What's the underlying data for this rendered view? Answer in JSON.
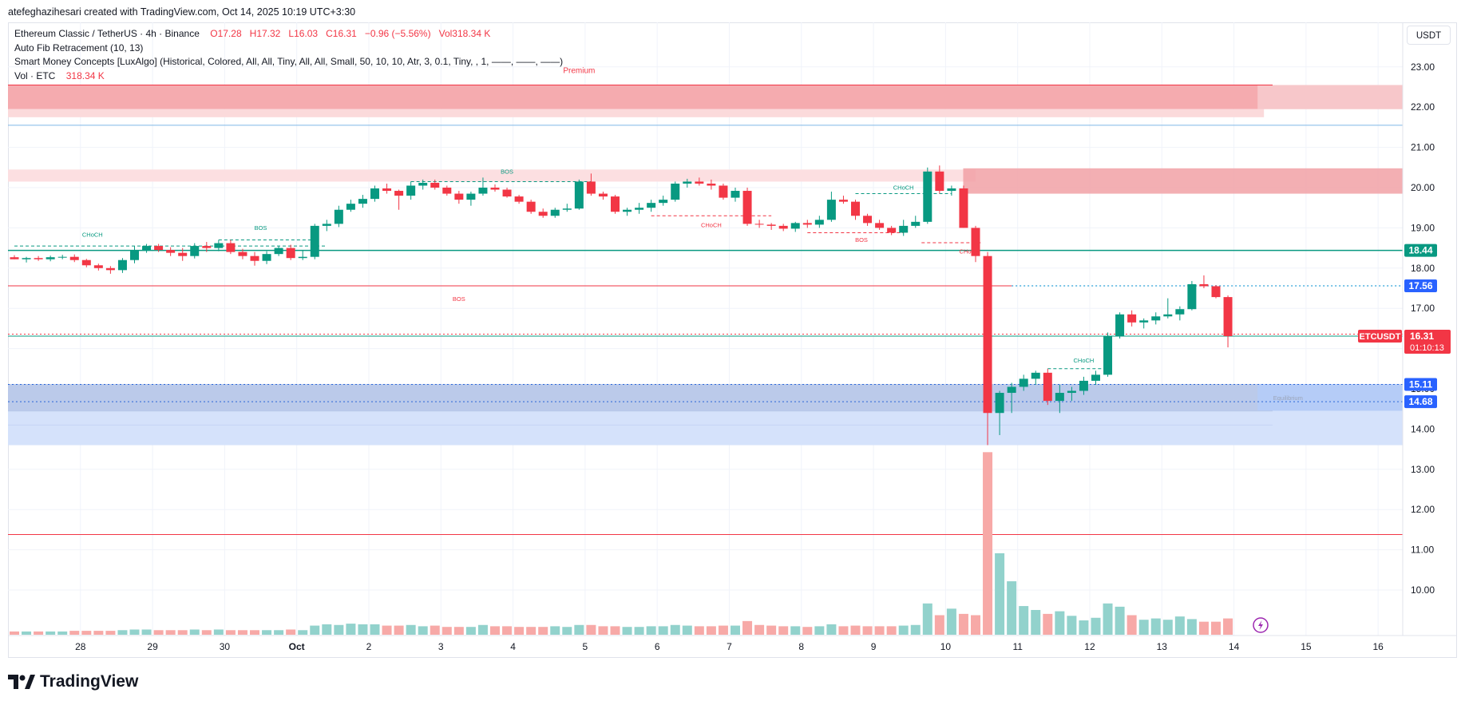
{
  "header": {
    "credit": "atefeghazihesari created with TradingView.com, Oct 14, 2025 10:19 UTC+3:30"
  },
  "legend": {
    "symbol": "Ethereum Classic / TetherUS · 4h · Binance",
    "ohlc_open": "O17.28",
    "ohlc_high": "H17.32",
    "ohlc_low": "L16.03",
    "ohlc_close": "C16.31",
    "change": "−0.96 (−5.56%)",
    "vol": "Vol318.34 K",
    "indicator1": "Auto Fib Retracement (10, 13)",
    "indicator2": "Smart Money Concepts [LuxAlgo] (Historical, Colored, All, All, Tiny, All, All, Small, 50, 10, 10, Atr, 3, 0.1, Tiny, , 1, ——, ——, ——)",
    "vol_label": "Vol · ETC",
    "vol_value": "318.34 K"
  },
  "currency": "USDT",
  "brand": "TradingView",
  "colors": {
    "up": "#089981",
    "down": "#f23645",
    "up_vol": "#92d2cc",
    "down_vol": "#f7a9a7",
    "price_badge": "#2962ff",
    "last_badge": "#f23645"
  },
  "chart_data": {
    "type": "candlestick",
    "symbol": "ETCUSDT",
    "timeframe": "4h",
    "ylim": [
      9.0,
      23.6
    ],
    "y_ticks": [
      "23.00",
      "22.00",
      "21.00",
      "20.00",
      "19.00",
      "18.00",
      "17.00",
      "16.00",
      "15.00",
      "14.00",
      "13.00",
      "12.00",
      "11.00",
      "10.00"
    ],
    "x_ticks": [
      "28",
      "29",
      "30",
      "Oct",
      "2",
      "3",
      "4",
      "5",
      "6",
      "7",
      "8",
      "9",
      "10",
      "11",
      "12",
      "13",
      "14",
      "15",
      "16"
    ],
    "x_tick_bar_index": [
      5.5,
      11.5,
      17.5,
      23.5,
      29.5,
      35.5,
      41.5,
      47.5,
      53.5,
      59.5,
      65.5,
      71.5,
      77.5,
      83.5,
      89.5,
      95.5,
      101.5,
      107.5,
      113.5
    ],
    "candles": [
      [
        18.27,
        18.32,
        18.22,
        18.22
      ],
      [
        18.22,
        18.28,
        18.14,
        18.25
      ],
      [
        18.25,
        18.3,
        18.18,
        18.22
      ],
      [
        18.22,
        18.31,
        18.17,
        18.27
      ],
      [
        18.27,
        18.33,
        18.22,
        18.28
      ],
      [
        18.28,
        18.34,
        18.15,
        18.2
      ],
      [
        18.2,
        18.23,
        18.02,
        18.07
      ],
      [
        18.07,
        18.11,
        17.94,
        18.0
      ],
      [
        18.0,
        18.05,
        17.86,
        17.95
      ],
      [
        17.95,
        18.25,
        17.88,
        18.2
      ],
      [
        18.2,
        18.55,
        18.12,
        18.45
      ],
      [
        18.45,
        18.6,
        18.38,
        18.55
      ],
      [
        18.55,
        18.6,
        18.4,
        18.45
      ],
      [
        18.45,
        18.52,
        18.3,
        18.38
      ],
      [
        18.38,
        18.5,
        18.18,
        18.3
      ],
      [
        18.3,
        18.62,
        18.24,
        18.55
      ],
      [
        18.55,
        18.65,
        18.4,
        18.5
      ],
      [
        18.5,
        18.7,
        18.42,
        18.62
      ],
      [
        18.62,
        18.7,
        18.35,
        18.4
      ],
      [
        18.4,
        18.48,
        18.22,
        18.3
      ],
      [
        18.3,
        18.4,
        18.06,
        18.18
      ],
      [
        18.18,
        18.42,
        18.1,
        18.35
      ],
      [
        18.35,
        18.55,
        18.3,
        18.5
      ],
      [
        18.5,
        18.58,
        18.2,
        18.25
      ],
      [
        18.25,
        18.45,
        18.2,
        18.28
      ],
      [
        18.28,
        19.1,
        18.22,
        19.05
      ],
      [
        19.05,
        19.2,
        18.92,
        19.1
      ],
      [
        19.1,
        19.55,
        19.02,
        19.45
      ],
      [
        19.45,
        19.7,
        19.4,
        19.6
      ],
      [
        19.6,
        19.82,
        19.5,
        19.72
      ],
      [
        19.72,
        20.05,
        19.65,
        19.98
      ],
      [
        19.98,
        20.1,
        19.85,
        19.92
      ],
      [
        19.92,
        19.95,
        19.45,
        19.8
      ],
      [
        19.8,
        20.15,
        19.7,
        20.05
      ],
      [
        20.05,
        20.2,
        19.95,
        20.12
      ],
      [
        20.12,
        20.2,
        19.95,
        20.0
      ],
      [
        20.0,
        20.05,
        19.8,
        19.85
      ],
      [
        19.85,
        19.92,
        19.6,
        19.7
      ],
      [
        19.7,
        19.9,
        19.55,
        19.85
      ],
      [
        19.85,
        20.25,
        19.8,
        20.0
      ],
      [
        20.0,
        20.08,
        19.9,
        19.95
      ],
      [
        19.95,
        20.0,
        19.75,
        19.78
      ],
      [
        19.78,
        19.82,
        19.6,
        19.65
      ],
      [
        19.65,
        19.7,
        19.35,
        19.4
      ],
      [
        19.4,
        19.48,
        19.25,
        19.3
      ],
      [
        19.3,
        19.5,
        19.25,
        19.45
      ],
      [
        19.45,
        19.6,
        19.4,
        19.48
      ],
      [
        19.48,
        20.2,
        19.45,
        20.15
      ],
      [
        20.15,
        20.35,
        19.8,
        19.85
      ],
      [
        19.85,
        19.9,
        19.7,
        19.78
      ],
      [
        19.78,
        19.82,
        19.35,
        19.4
      ],
      [
        19.4,
        19.5,
        19.3,
        19.45
      ],
      [
        19.45,
        19.62,
        19.35,
        19.5
      ],
      [
        19.5,
        19.7,
        19.4,
        19.62
      ],
      [
        19.62,
        19.8,
        19.55,
        19.7
      ],
      [
        19.7,
        20.15,
        19.65,
        20.1
      ],
      [
        20.1,
        20.22,
        20.0,
        20.15
      ],
      [
        20.15,
        20.25,
        20.05,
        20.1
      ],
      [
        20.1,
        20.2,
        19.95,
        20.05
      ],
      [
        20.05,
        20.1,
        19.7,
        19.75
      ],
      [
        19.75,
        20.0,
        19.65,
        19.92
      ],
      [
        19.92,
        20.0,
        19.05,
        19.1
      ],
      [
        19.1,
        19.2,
        19.0,
        19.08
      ],
      [
        19.08,
        19.12,
        18.95,
        19.05
      ],
      [
        19.05,
        19.1,
        18.92,
        18.98
      ],
      [
        18.98,
        19.15,
        18.9,
        19.12
      ],
      [
        19.12,
        19.2,
        19.0,
        19.08
      ],
      [
        19.08,
        19.3,
        19.0,
        19.2
      ],
      [
        19.2,
        19.9,
        19.15,
        19.7
      ],
      [
        19.7,
        19.8,
        19.6,
        19.65
      ],
      [
        19.65,
        19.7,
        19.2,
        19.3
      ],
      [
        19.3,
        19.35,
        19.05,
        19.12
      ],
      [
        19.12,
        19.2,
        18.95,
        19.0
      ],
      [
        19.0,
        19.05,
        18.82,
        18.88
      ],
      [
        18.88,
        19.2,
        18.8,
        19.05
      ],
      [
        19.05,
        19.3,
        19.0,
        19.15
      ],
      [
        19.15,
        20.5,
        19.1,
        20.4
      ],
      [
        20.4,
        20.55,
        19.85,
        19.92
      ],
      [
        19.92,
        20.05,
        19.8,
        19.98
      ],
      [
        19.98,
        20.05,
        19.0,
        19.0
      ],
      [
        19.0,
        19.05,
        18.15,
        18.3
      ],
      [
        18.3,
        18.4,
        13.6,
        14.4
      ],
      [
        14.4,
        14.95,
        13.85,
        14.9
      ],
      [
        14.9,
        15.15,
        14.4,
        15.05
      ],
      [
        15.05,
        15.35,
        14.95,
        15.25
      ],
      [
        15.25,
        15.45,
        15.1,
        15.4
      ],
      [
        15.4,
        15.5,
        14.6,
        14.7
      ],
      [
        14.7,
        15.1,
        14.4,
        14.9
      ],
      [
        14.9,
        15.05,
        14.7,
        14.95
      ],
      [
        14.95,
        15.3,
        14.85,
        15.2
      ],
      [
        15.2,
        15.45,
        15.1,
        15.35
      ],
      [
        15.35,
        16.4,
        15.3,
        16.3
      ],
      [
        16.3,
        16.9,
        16.25,
        16.85
      ],
      [
        16.85,
        16.95,
        16.55,
        16.65
      ],
      [
        16.65,
        16.75,
        16.5,
        16.7
      ],
      [
        16.7,
        16.9,
        16.6,
        16.8
      ],
      [
        16.8,
        17.25,
        16.75,
        16.85
      ],
      [
        16.85,
        17.05,
        16.7,
        16.98
      ],
      [
        16.98,
        17.68,
        16.95,
        17.6
      ],
      [
        17.6,
        17.82,
        17.5,
        17.55
      ],
      [
        17.55,
        17.58,
        17.25,
        17.28
      ],
      [
        17.28,
        17.32,
        16.03,
        16.31
      ]
    ],
    "volume": [
      0.5,
      0.5,
      0.5,
      0.5,
      0.5,
      0.6,
      0.6,
      0.6,
      0.6,
      0.7,
      0.8,
      0.8,
      0.7,
      0.7,
      0.7,
      0.8,
      0.7,
      0.8,
      0.7,
      0.7,
      0.7,
      0.7,
      0.7,
      0.8,
      0.7,
      1.4,
      1.6,
      1.5,
      1.7,
      1.6,
      1.6,
      1.4,
      1.4,
      1.5,
      1.3,
      1.4,
      1.2,
      1.2,
      1.2,
      1.5,
      1.3,
      1.3,
      1.2,
      1.2,
      1.2,
      1.3,
      1.2,
      1.5,
      1.5,
      1.3,
      1.3,
      1.2,
      1.2,
      1.3,
      1.3,
      1.5,
      1.4,
      1.3,
      1.3,
      1.4,
      1.4,
      2.1,
      1.5,
      1.4,
      1.3,
      1.3,
      1.2,
      1.3,
      1.6,
      1.3,
      1.4,
      1.3,
      1.3,
      1.3,
      1.4,
      1.5,
      4.8,
      3.0,
      4.0,
      3.2,
      3.0,
      28.0,
      12.5,
      8.2,
      4.4,
      3.8,
      3.2,
      3.6,
      2.9,
      2.2,
      2.6,
      4.8,
      4.3,
      3.0,
      2.3,
      2.5,
      2.3,
      2.8,
      2.4,
      2.0,
      2.0,
      2.5
    ],
    "volume_ylim": [
      0,
      30
    ],
    "bars_total": 117,
    "zones": [
      {
        "from": 22.55,
        "to": 21.95,
        "color": "#f4a6ab",
        "opacity": 0.95,
        "start_index": 0,
        "end_index": 104
      },
      {
        "from": 22.55,
        "to": 21.95,
        "color": "#f7c7ca",
        "opacity": 1,
        "start_index": 104,
        "end_index": 116.4
      },
      {
        "from": 21.95,
        "to": 21.75,
        "color": "#fbdadb",
        "opacity": 1,
        "start_index": 0,
        "end_index": 104
      },
      {
        "from": 20.45,
        "to": 20.15,
        "color": "#fcdfe1",
        "opacity": 1,
        "start_index": 0,
        "end_index": 80
      },
      {
        "from": 20.48,
        "to": 19.85,
        "color": "#f1a1a6",
        "opacity": 0.85,
        "start_index": 79.5,
        "end_index": 116.4
      },
      {
        "from": 15.12,
        "to": 14.45,
        "color": "#b7c7e9",
        "opacity": 0.95,
        "start_index": 0,
        "end_index": 104
      },
      {
        "from": 15.12,
        "to": 14.45,
        "color": "#b5ccf7",
        "opacity": 1,
        "start_index": 104,
        "end_index": 116.4
      },
      {
        "from": 14.45,
        "to": 13.6,
        "color": "#d5e2fb",
        "opacity": 1,
        "start_index": 0,
        "end_index": 116.4
      }
    ],
    "hlines": [
      {
        "y": 21.55,
        "color": "#7fb8e6",
        "width": 1,
        "dash": ""
      },
      {
        "y": 18.44,
        "color": "#089981",
        "width": 1.5,
        "dash": ""
      },
      {
        "y": 17.56,
        "color": "#2aa0d8",
        "width": 1.2,
        "dash": "2,3",
        "start_index": 83
      },
      {
        "y": 17.56,
        "color": "#f23645",
        "width": 1,
        "dash": "",
        "end_index": 83
      },
      {
        "y": 16.31,
        "color": "#089981",
        "width": 1,
        "dash": ""
      },
      {
        "y": 16.36,
        "color": "#f23645",
        "width": 1,
        "dash": "2,3"
      },
      {
        "y": 15.11,
        "color": "#2a66d8",
        "width": 1,
        "dash": "2,3"
      },
      {
        "y": 14.68,
        "color": "#2a66d8",
        "width": 1,
        "dash": "2,3"
      },
      {
        "y": 11.38,
        "color": "#f23645",
        "width": 1,
        "dash": ""
      }
    ],
    "structure_lines": [
      {
        "y": 18.55,
        "from": 0,
        "to": 26,
        "color": "#089981"
      },
      {
        "y": 18.7,
        "from": 17,
        "to": 25,
        "color": "#089981"
      },
      {
        "y": 20.15,
        "from": 33,
        "to": 48,
        "color": "#089981"
      },
      {
        "y": 19.3,
        "from": 53,
        "to": 63,
        "color": "#f23645"
      },
      {
        "y": 18.88,
        "from": 66,
        "to": 74,
        "color": "#f23645"
      },
      {
        "y": 18.63,
        "from": 75.5,
        "to": 80.5,
        "color": "#f23645"
      },
      {
        "y": 19.85,
        "from": 70,
        "to": 78,
        "color": "#089981"
      },
      {
        "y": 15.5,
        "from": 86,
        "to": 91,
        "color": "#089981"
      }
    ],
    "labels": [
      {
        "text": "Premium",
        "x_index": 47,
        "y": 22.85,
        "color": "#f23645"
      },
      {
        "text": "BOS",
        "x_index": 41,
        "y": 20.35,
        "color": "#089981"
      },
      {
        "text": "CHoCH",
        "x_index": 74,
        "y": 19.95,
        "color": "#089981"
      },
      {
        "text": "CHoCH",
        "x_index": 58,
        "y": 19.02,
        "color": "#f23645"
      },
      {
        "text": "BOS",
        "x_index": 20.5,
        "y": 18.95,
        "color": "#089981"
      },
      {
        "text": "CHoCH",
        "x_index": 6.5,
        "y": 18.78,
        "color": "#089981"
      },
      {
        "text": "BOS",
        "x_index": 70.5,
        "y": 18.65,
        "color": "#f23645"
      },
      {
        "text": "CHoCH",
        "x_index": 79.5,
        "y": 18.36,
        "color": "#f23645"
      },
      {
        "text": "BOS",
        "x_index": 37,
        "y": 17.18,
        "color": "#f23645"
      },
      {
        "text": "CHoCH",
        "x_index": 89,
        "y": 15.65,
        "color": "#089981"
      },
      {
        "text": "Equilibrium",
        "x_index": 106,
        "y": 14.72,
        "color": "#9aa4b8"
      }
    ],
    "price_badges": [
      {
        "text": "18.44",
        "y": 18.44,
        "color": "#089981"
      },
      {
        "text": "17.56",
        "y": 17.56,
        "color": "#2962ff"
      },
      {
        "text": "15.11",
        "y": 15.11,
        "color": "#2962ff"
      },
      {
        "text": "14.68",
        "y": 14.68,
        "color": "#2962ff"
      }
    ],
    "last_price": {
      "symbol": "ETCUSDT",
      "price": "16.31",
      "countdown": "01:10:13",
      "y": 16.31
    }
  }
}
